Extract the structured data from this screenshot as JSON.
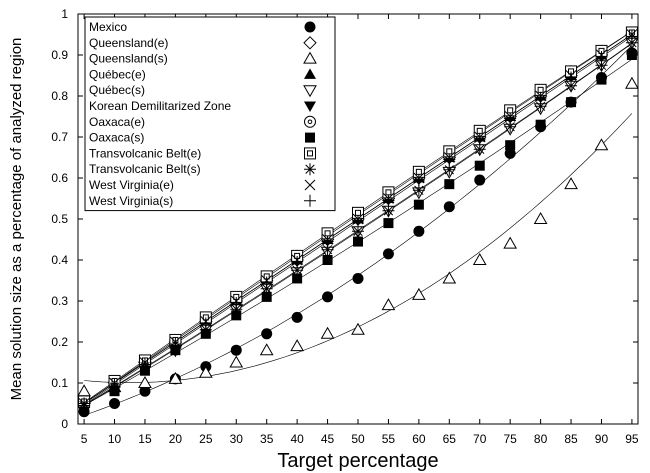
{
  "chart_data": {
    "type": "scatter",
    "title": "",
    "xlabel": "Target percentage",
    "ylabel": "Mean solution size as a percentage of analyzed region",
    "xlim": [
      4,
      96
    ],
    "ylim": [
      0,
      1
    ],
    "x": [
      5,
      10,
      15,
      20,
      25,
      30,
      35,
      40,
      45,
      50,
      55,
      60,
      65,
      70,
      75,
      80,
      85,
      90,
      95
    ],
    "xticks": [
      5,
      10,
      15,
      20,
      25,
      30,
      35,
      40,
      45,
      50,
      55,
      60,
      65,
      70,
      75,
      80,
      85,
      90,
      95
    ],
    "yticks": [
      0,
      0.1,
      0.2,
      0.3,
      0.4,
      0.5,
      0.6,
      0.7,
      0.8,
      0.9,
      1
    ],
    "ytick_labels": [
      "0",
      "0.1",
      "0.2",
      "0.3",
      "0.4",
      "0.5",
      "0.6",
      "0.7",
      "0.8",
      "0.9",
      "1"
    ],
    "grid": false,
    "legend_position": "top-left",
    "series": [
      {
        "name": "Mexico",
        "marker": "filled-circle",
        "values": [
          0.03,
          0.05,
          0.08,
          0.11,
          0.14,
          0.18,
          0.22,
          0.26,
          0.31,
          0.355,
          0.415,
          0.47,
          0.53,
          0.595,
          0.66,
          0.725,
          0.785,
          0.845,
          0.905
        ]
      },
      {
        "name": "Queensland(e)",
        "marker": "open-diamond",
        "values": [
          0.05,
          0.1,
          0.15,
          0.2,
          0.25,
          0.3,
          0.35,
          0.4,
          0.45,
          0.5,
          0.55,
          0.6,
          0.65,
          0.7,
          0.75,
          0.8,
          0.85,
          0.9,
          0.95
        ]
      },
      {
        "name": "Queensland(s)",
        "marker": "open-triangle-up",
        "values": [
          0.08,
          0.09,
          0.1,
          0.11,
          0.125,
          0.15,
          0.18,
          0.19,
          0.22,
          0.23,
          0.29,
          0.315,
          0.355,
          0.4,
          0.44,
          0.5,
          0.585,
          0.68,
          0.83
        ]
      },
      {
        "name": "Québec(e)",
        "marker": "filled-triangle-up",
        "values": [
          0.05,
          0.1,
          0.15,
          0.2,
          0.25,
          0.3,
          0.35,
          0.4,
          0.45,
          0.5,
          0.55,
          0.6,
          0.65,
          0.7,
          0.75,
          0.8,
          0.85,
          0.9,
          0.95
        ]
      },
      {
        "name": "Québec(s)",
        "marker": "open-triangle-down",
        "values": [
          0.04,
          0.09,
          0.14,
          0.18,
          0.23,
          0.28,
          0.33,
          0.37,
          0.42,
          0.47,
          0.52,
          0.565,
          0.615,
          0.67,
          0.72,
          0.77,
          0.825,
          0.875,
          0.93
        ]
      },
      {
        "name": "Korean Demilitarized Zone",
        "marker": "filled-triangle-down",
        "values": [
          0.05,
          0.1,
          0.15,
          0.2,
          0.25,
          0.3,
          0.35,
          0.4,
          0.45,
          0.5,
          0.55,
          0.6,
          0.65,
          0.7,
          0.75,
          0.8,
          0.85,
          0.9,
          0.95
        ]
      },
      {
        "name": "Oaxaca(e)",
        "marker": "open-circle",
        "values": [
          0.05,
          0.1,
          0.155,
          0.205,
          0.255,
          0.305,
          0.355,
          0.41,
          0.46,
          0.51,
          0.56,
          0.61,
          0.66,
          0.71,
          0.76,
          0.81,
          0.86,
          0.91,
          0.955
        ]
      },
      {
        "name": "Oaxaca(s)",
        "marker": "filled-square",
        "values": [
          0.04,
          0.08,
          0.13,
          0.18,
          0.22,
          0.265,
          0.31,
          0.355,
          0.4,
          0.445,
          0.49,
          0.535,
          0.585,
          0.63,
          0.68,
          0.73,
          0.785,
          0.84,
          0.9
        ]
      },
      {
        "name": "Transvolcanic Belt(e)",
        "marker": "open-square",
        "values": [
          0.055,
          0.105,
          0.155,
          0.205,
          0.26,
          0.31,
          0.36,
          0.41,
          0.465,
          0.515,
          0.565,
          0.615,
          0.665,
          0.715,
          0.765,
          0.815,
          0.86,
          0.91,
          0.955
        ]
      },
      {
        "name": "Transvolcanic Belt(s)",
        "marker": "asterisk",
        "values": [
          0.045,
          0.09,
          0.14,
          0.185,
          0.23,
          0.28,
          0.33,
          0.375,
          0.425,
          0.47,
          0.52,
          0.57,
          0.62,
          0.67,
          0.725,
          0.775,
          0.825,
          0.875,
          0.93
        ]
      },
      {
        "name": "West Virginia(e)",
        "marker": "x",
        "values": [
          0.05,
          0.1,
          0.15,
          0.2,
          0.25,
          0.3,
          0.35,
          0.4,
          0.45,
          0.5,
          0.55,
          0.6,
          0.65,
          0.7,
          0.75,
          0.8,
          0.85,
          0.9,
          0.95
        ]
      },
      {
        "name": "West Virginia(s)",
        "marker": "plus",
        "values": [
          0.05,
          0.095,
          0.145,
          0.195,
          0.245,
          0.295,
          0.345,
          0.395,
          0.445,
          0.495,
          0.545,
          0.595,
          0.645,
          0.695,
          0.745,
          0.795,
          0.845,
          0.895,
          0.945
        ]
      }
    ]
  }
}
